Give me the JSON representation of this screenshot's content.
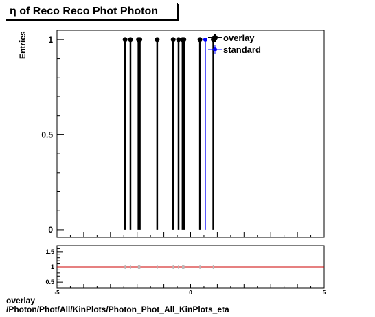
{
  "title": "η of Reco Reco Phot Photon",
  "footer": {
    "line1": "overlay",
    "line2": "/Photon/Phot/All/KinPlots/Photon_Phot_All_KinPlots_eta"
  },
  "chart_data": [
    {
      "type": "scatter",
      "ylabel": "Entries",
      "xlim": [
        -5,
        5
      ],
      "ylim": [
        -0.04,
        1.05
      ],
      "yticks": [
        0,
        0.5,
        1
      ],
      "ytick_labels": [
        "0",
        "0.5",
        "1"
      ],
      "legend_position": "top-right",
      "series": [
        {
          "name": "overlay",
          "color": "#000000",
          "x": [
            -2.45,
            -2.25,
            -1.95,
            -1.9,
            -1.25,
            -0.65,
            -0.45,
            -0.3,
            -0.25,
            0.35,
            0.85
          ],
          "y": [
            1,
            1,
            1,
            1,
            1,
            1,
            1,
            1,
            1,
            1,
            1
          ]
        },
        {
          "name": "standard",
          "color": "#0000ff",
          "x": [
            0.55
          ],
          "y": [
            1
          ]
        }
      ]
    },
    {
      "type": "line",
      "xlim": [
        -5,
        5
      ],
      "ylim": [
        0.3,
        1.7
      ],
      "yticks": [
        0.5,
        1,
        1.5
      ],
      "ytick_labels": [
        "0.5",
        "1",
        "1.5"
      ],
      "xticks": [
        -5,
        0,
        5
      ],
      "xtick_labels": [
        "-5",
        "0",
        "5"
      ],
      "reference_line": 1,
      "reference_color": "#cc0000"
    }
  ]
}
